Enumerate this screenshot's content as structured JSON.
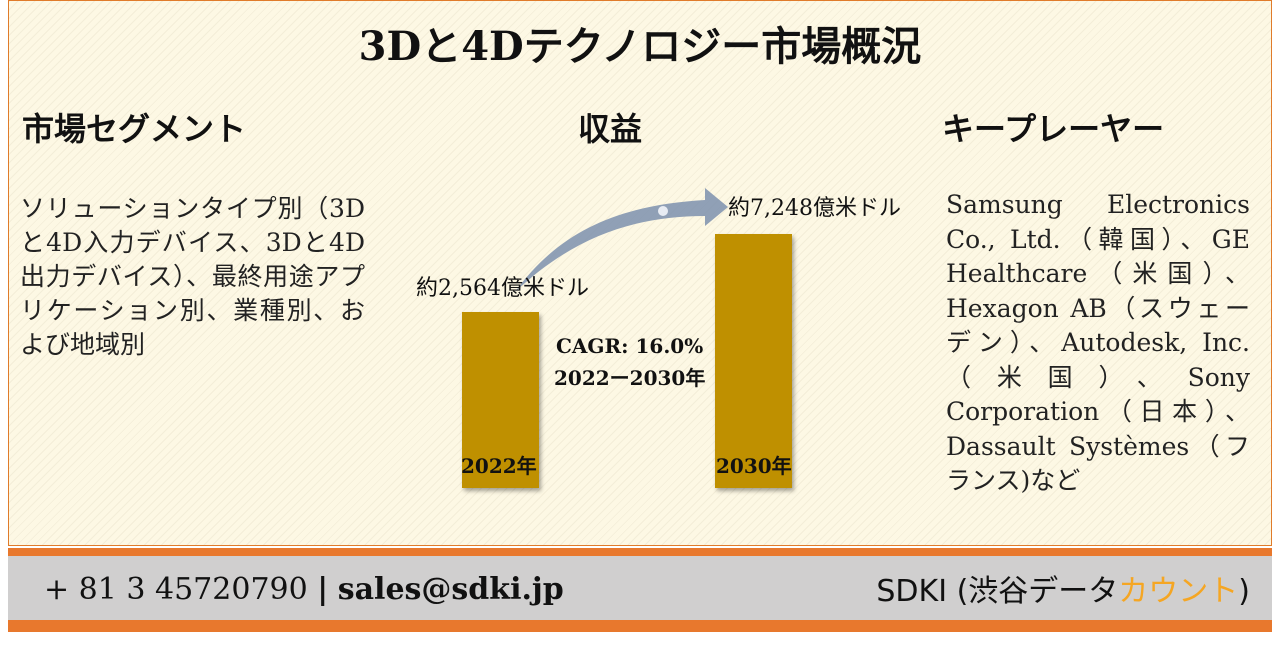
{
  "title": "3Dと4Dテクノロジー市場概況",
  "segment": {
    "heading": "市場セグメント",
    "body": "ソリューションタイプ別（3Dと4D入力デバイス、3Dと4D出力デバイス）、最終用途アプリケーション別、業種別、および地域別"
  },
  "revenue": {
    "heading": "収益",
    "start_value": "約2,564億米ドル",
    "end_value": "約7,248億米ドル",
    "cagr": "CAGR: 16.0%",
    "period": "2022ー2030年",
    "start_year": "2022年",
    "end_year": "2030年"
  },
  "players": {
    "heading": "キープレーヤー",
    "body": "Samsung Electronics Co., Ltd.（韓国）、GE Healthcare（米国）、Hexagon AB（スウェーデン）、Autodesk, Inc.（米国）、Sony Corporation（日本）、Dassault Systèmes（フランス)など"
  },
  "footer": {
    "phone": "+ 81 3 45720790",
    "separator": "|",
    "email": "sales@sdki.jp",
    "brand": "SDKI (渋谷データ",
    "brand_highlight": "カウント",
    "brand_end": ")"
  }
}
